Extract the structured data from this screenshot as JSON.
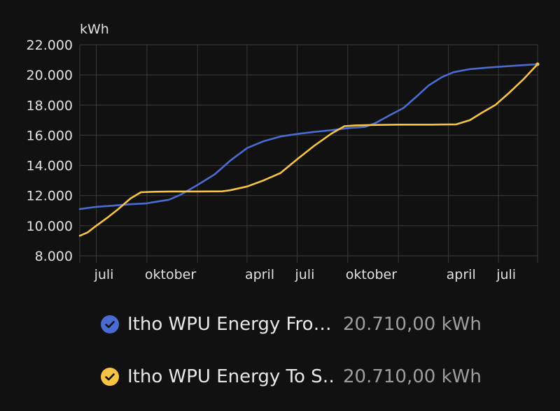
{
  "chart_data": {
    "type": "line",
    "unit_label": "kWh",
    "ylim": [
      8000,
      22000
    ],
    "y_ticks": [
      8000,
      10000,
      12000,
      14000,
      16000,
      18000,
      20000,
      22000
    ],
    "y_tick_labels": [
      "8.000",
      "10.000",
      "12.000",
      "14.000",
      "16.000",
      "18.000",
      "20.000",
      "22.000"
    ],
    "x_range": [
      "2022-06-01",
      "2024-09-10"
    ],
    "x_ticks": [
      "2022-07-01",
      "2022-10-01",
      "2023-04-01",
      "2023-07-01",
      "2023-10-01",
      "2024-04-01",
      "2024-07-01"
    ],
    "x_tick_labels": [
      "juli",
      "oktober",
      "april",
      "juli",
      "oktober",
      "april",
      "juli"
    ],
    "grid": true,
    "series": [
      {
        "name": "Itho WPU Energy From Source",
        "color": "#4a6bd1",
        "points": [
          [
            "2022-06-01",
            11100
          ],
          [
            "2022-07-01",
            11250
          ],
          [
            "2022-08-01",
            11330
          ],
          [
            "2022-09-01",
            11420
          ],
          [
            "2022-10-01",
            11480
          ],
          [
            "2022-10-20",
            11600
          ],
          [
            "2022-11-10",
            11720
          ],
          [
            "2022-12-01",
            12050
          ],
          [
            "2023-01-01",
            12700
          ],
          [
            "2023-02-01",
            13400
          ],
          [
            "2023-03-01",
            14300
          ],
          [
            "2023-04-01",
            15150
          ],
          [
            "2023-05-01",
            15600
          ],
          [
            "2023-06-01",
            15920
          ],
          [
            "2023-07-01",
            16080
          ],
          [
            "2023-08-01",
            16220
          ],
          [
            "2023-09-01",
            16330
          ],
          [
            "2023-10-01",
            16470
          ],
          [
            "2023-11-01",
            16550
          ],
          [
            "2023-11-20",
            16800
          ],
          [
            "2023-12-15",
            17300
          ],
          [
            "2024-01-10",
            17800
          ],
          [
            "2024-02-01",
            18500
          ],
          [
            "2024-02-25",
            19300
          ],
          [
            "2024-03-20",
            19850
          ],
          [
            "2024-04-10",
            20180
          ],
          [
            "2024-05-10",
            20380
          ],
          [
            "2024-06-10",
            20480
          ],
          [
            "2024-07-10",
            20560
          ],
          [
            "2024-09-10",
            20710
          ]
        ]
      },
      {
        "name": "Itho WPU Energy To Space",
        "color": "#f6c344",
        "points": [
          [
            "2022-06-01",
            9330
          ],
          [
            "2022-06-15",
            9550
          ],
          [
            "2022-07-01",
            10000
          ],
          [
            "2022-07-20",
            10500
          ],
          [
            "2022-08-10",
            11100
          ],
          [
            "2022-09-01",
            11800
          ],
          [
            "2022-09-20",
            12220
          ],
          [
            "2022-10-15",
            12250
          ],
          [
            "2022-11-15",
            12270
          ],
          [
            "2023-01-01",
            12270
          ],
          [
            "2023-02-15",
            12280
          ],
          [
            "2023-03-01",
            12350
          ],
          [
            "2023-04-01",
            12600
          ],
          [
            "2023-05-01",
            13000
          ],
          [
            "2023-06-01",
            13500
          ],
          [
            "2023-07-01",
            14400
          ],
          [
            "2023-08-01",
            15300
          ],
          [
            "2023-09-01",
            16100
          ],
          [
            "2023-09-25",
            16600
          ],
          [
            "2023-10-15",
            16650
          ],
          [
            "2023-11-15",
            16680
          ],
          [
            "2024-01-01",
            16700
          ],
          [
            "2024-03-01",
            16700
          ],
          [
            "2024-04-15",
            16720
          ],
          [
            "2024-05-10",
            17000
          ],
          [
            "2024-06-01",
            17500
          ],
          [
            "2024-06-25",
            18000
          ],
          [
            "2024-07-20",
            18800
          ],
          [
            "2024-08-15",
            19700
          ],
          [
            "2024-09-10",
            20710
          ]
        ]
      }
    ]
  },
  "legend": {
    "items": [
      {
        "name": "Itho WPU Energy Fro…",
        "value": "20.710,00 kWh",
        "color": "#4a6bd1",
        "icon": "check-circle-icon"
      },
      {
        "name": "Itho WPU Energy To S…",
        "value": "20.710,00 kWh",
        "color": "#f6c344",
        "icon": "check-circle-icon"
      }
    ]
  }
}
